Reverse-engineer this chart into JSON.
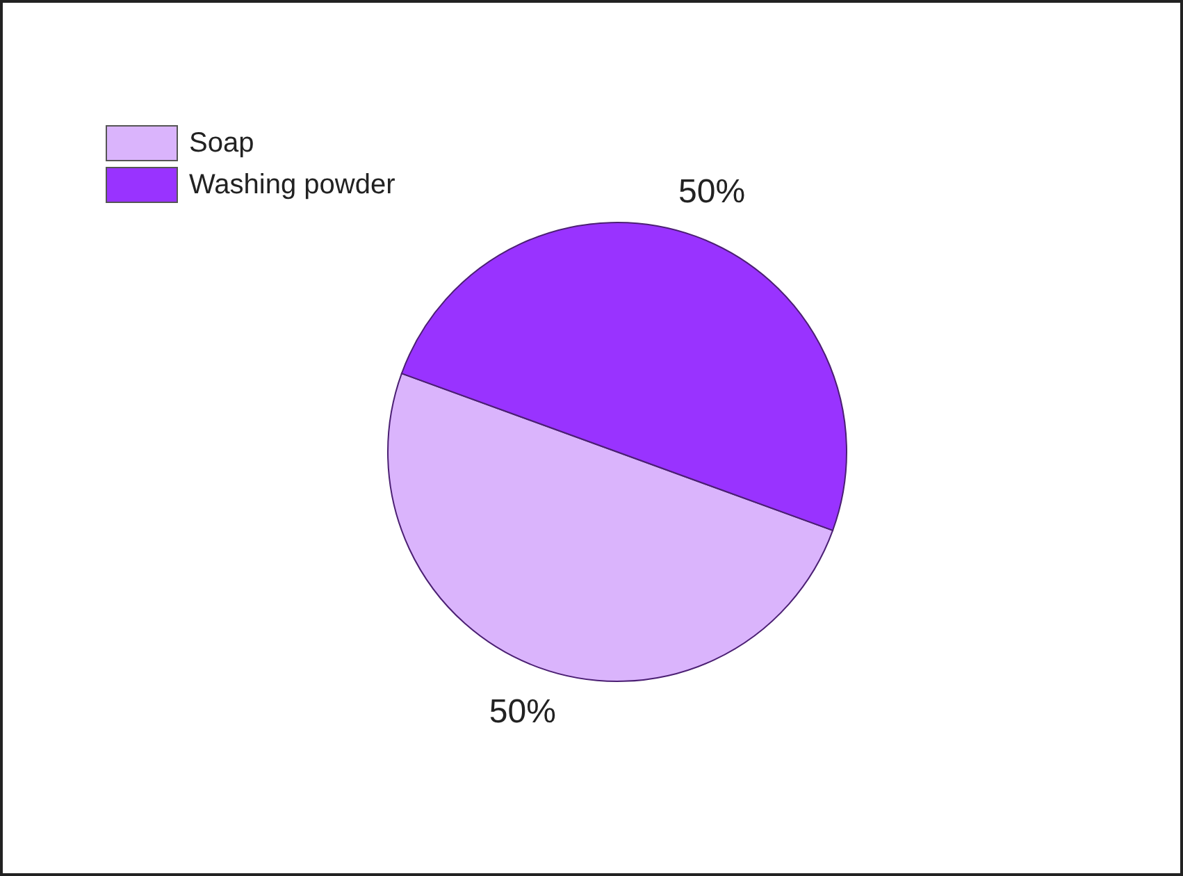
{
  "chart_data": {
    "type": "pie",
    "categories": [
      "Soap",
      "Washing powder"
    ],
    "values": [
      50,
      50
    ],
    "colors": [
      "#dab4fc",
      "#9933ff"
    ],
    "value_labels": [
      "50%",
      "50%"
    ],
    "legend": "top left"
  }
}
